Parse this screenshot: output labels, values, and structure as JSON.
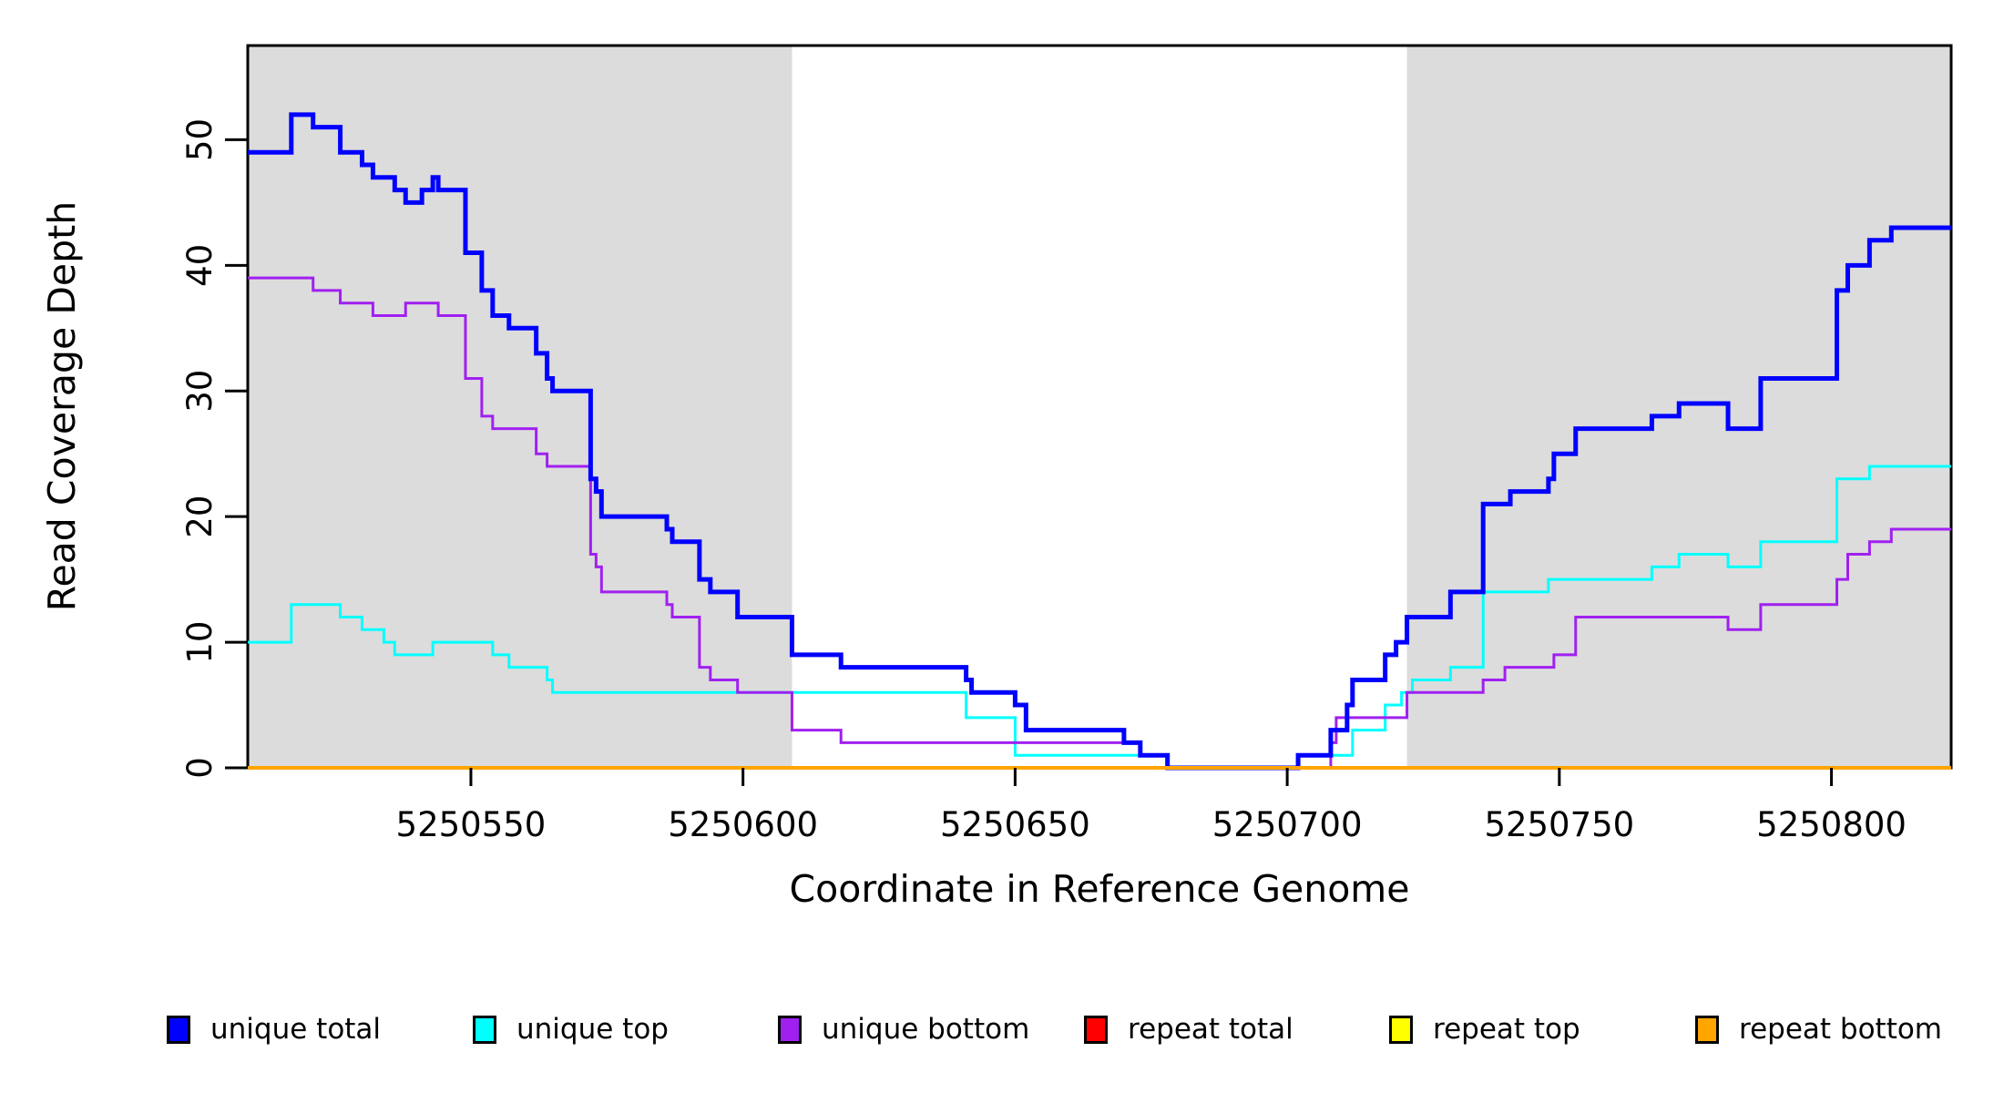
{
  "figure": {
    "xlabel": "Coordinate in Reference Genome",
    "ylabel": "Read Coverage Depth"
  },
  "chart_data": {
    "type": "line",
    "subtype": "step-after",
    "title": "",
    "xlabel": "Coordinate in Reference Genome",
    "ylabel": "Read Coverage Depth",
    "xlim": [
      5250509,
      5250822
    ],
    "ylim": [
      0,
      57.5
    ],
    "x_ticks": [
      5250550,
      5250600,
      5250650,
      5250700,
      5250750,
      5250800
    ],
    "y_ticks": [
      0,
      10,
      20,
      30,
      40,
      50
    ],
    "grid": false,
    "plot_border_color": "#000000",
    "background_shading": {
      "color": "#DCDCDC",
      "regions": [
        {
          "x0": 5250509,
          "x1": 5250609
        },
        {
          "x0": 5250722,
          "x1": 5250822
        }
      ]
    },
    "legend": {
      "position": "bottom",
      "entries": [
        {
          "label": "unique total",
          "color": "#0000FF"
        },
        {
          "label": "unique top",
          "color": "#00FFFF"
        },
        {
          "label": "unique bottom",
          "color": "#A020F0"
        },
        {
          "label": "repeat total",
          "color": "#FF0000"
        },
        {
          "label": "repeat top",
          "color": "#FFFF00"
        },
        {
          "label": "repeat bottom",
          "color": "#FFA500"
        }
      ]
    },
    "series": [
      {
        "name": "unique top",
        "color": "#00FFFF",
        "width": 3,
        "step_points": [
          [
            5250509,
            10
          ],
          [
            5250517,
            13
          ],
          [
            5250526,
            12
          ],
          [
            5250530,
            11
          ],
          [
            5250534,
            10
          ],
          [
            5250536,
            9
          ],
          [
            5250543,
            10
          ],
          [
            5250554,
            9
          ],
          [
            5250557,
            8
          ],
          [
            5250564,
            7
          ],
          [
            5250565,
            6
          ],
          [
            5250641,
            4
          ],
          [
            5250650,
            1
          ],
          [
            5250678,
            0
          ],
          [
            5250702,
            1
          ],
          [
            5250712,
            3
          ],
          [
            5250718,
            5
          ],
          [
            5250721,
            6
          ],
          [
            5250723,
            7
          ],
          [
            5250730,
            8
          ],
          [
            5250736,
            14
          ],
          [
            5250748,
            15
          ],
          [
            5250767,
            16
          ],
          [
            5250772,
            17
          ],
          [
            5250781,
            16
          ],
          [
            5250787,
            18
          ],
          [
            5250801,
            23
          ],
          [
            5250807,
            24
          ]
        ]
      },
      {
        "name": "unique bottom",
        "color": "#A020F0",
        "width": 3,
        "step_points": [
          [
            5250509,
            39
          ],
          [
            5250521,
            38
          ],
          [
            5250526,
            37
          ],
          [
            5250532,
            36
          ],
          [
            5250538,
            37
          ],
          [
            5250544,
            36
          ],
          [
            5250549,
            31
          ],
          [
            5250552,
            28
          ],
          [
            5250554,
            27
          ],
          [
            5250562,
            25
          ],
          [
            5250564,
            24
          ],
          [
            5250572,
            17
          ],
          [
            5250573,
            16
          ],
          [
            5250574,
            14
          ],
          [
            5250586,
            13
          ],
          [
            5250587,
            12
          ],
          [
            5250592,
            8
          ],
          [
            5250594,
            7
          ],
          [
            5250599,
            6
          ],
          [
            5250609,
            3
          ],
          [
            5250618,
            2
          ],
          [
            5250673,
            1
          ],
          [
            5250678,
            0
          ],
          [
            5250708,
            2
          ],
          [
            5250709,
            4
          ],
          [
            5250722,
            6
          ],
          [
            5250736,
            7
          ],
          [
            5250740,
            8
          ],
          [
            5250749,
            9
          ],
          [
            5250753,
            12
          ],
          [
            5250781,
            11
          ],
          [
            5250787,
            13
          ],
          [
            5250801,
            15
          ],
          [
            5250803,
            17
          ],
          [
            5250807,
            18
          ],
          [
            5250811,
            19
          ]
        ]
      },
      {
        "name": "unique total",
        "color": "#0000FF",
        "width": 5,
        "step_points": [
          [
            5250509,
            49
          ],
          [
            5250517,
            52
          ],
          [
            5250521,
            51
          ],
          [
            5250526,
            49
          ],
          [
            5250530,
            48
          ],
          [
            5250532,
            47
          ],
          [
            5250536,
            46
          ],
          [
            5250538,
            45
          ],
          [
            5250541,
            46
          ],
          [
            5250543,
            47
          ],
          [
            5250544,
            46
          ],
          [
            5250549,
            41
          ],
          [
            5250552,
            38
          ],
          [
            5250554,
            36
          ],
          [
            5250557,
            35
          ],
          [
            5250562,
            33
          ],
          [
            5250564,
            31
          ],
          [
            5250565,
            30
          ],
          [
            5250572,
            23
          ],
          [
            5250573,
            22
          ],
          [
            5250574,
            20
          ],
          [
            5250586,
            19
          ],
          [
            5250587,
            18
          ],
          [
            5250592,
            15
          ],
          [
            5250594,
            14
          ],
          [
            5250599,
            12
          ],
          [
            5250609,
            9
          ],
          [
            5250618,
            8
          ],
          [
            5250641,
            7
          ],
          [
            5250642,
            6
          ],
          [
            5250650,
            5
          ],
          [
            5250652,
            3
          ],
          [
            5250670,
            2
          ],
          [
            5250673,
            1
          ],
          [
            5250678,
            0
          ],
          [
            5250702,
            1
          ],
          [
            5250708,
            3
          ],
          [
            5250711,
            5
          ],
          [
            5250712,
            7
          ],
          [
            5250718,
            9
          ],
          [
            5250720,
            10
          ],
          [
            5250722,
            12
          ],
          [
            5250730,
            14
          ],
          [
            5250736,
            21
          ],
          [
            5250741,
            22
          ],
          [
            5250748,
            23
          ],
          [
            5250749,
            25
          ],
          [
            5250753,
            27
          ],
          [
            5250767,
            28
          ],
          [
            5250772,
            29
          ],
          [
            5250781,
            27
          ],
          [
            5250787,
            31
          ],
          [
            5250801,
            38
          ],
          [
            5250803,
            40
          ],
          [
            5250807,
            42
          ],
          [
            5250811,
            43
          ]
        ]
      },
      {
        "name": "repeat total",
        "color": "#FF0000",
        "width": 3,
        "step_points": [
          [
            5250509,
            0
          ]
        ]
      },
      {
        "name": "repeat top",
        "color": "#FFFF00",
        "width": 3,
        "step_points": [
          [
            5250509,
            0
          ]
        ]
      },
      {
        "name": "repeat bottom",
        "color": "#FFA500",
        "width": 4,
        "step_points": [
          [
            5250509,
            0
          ]
        ]
      }
    ]
  }
}
